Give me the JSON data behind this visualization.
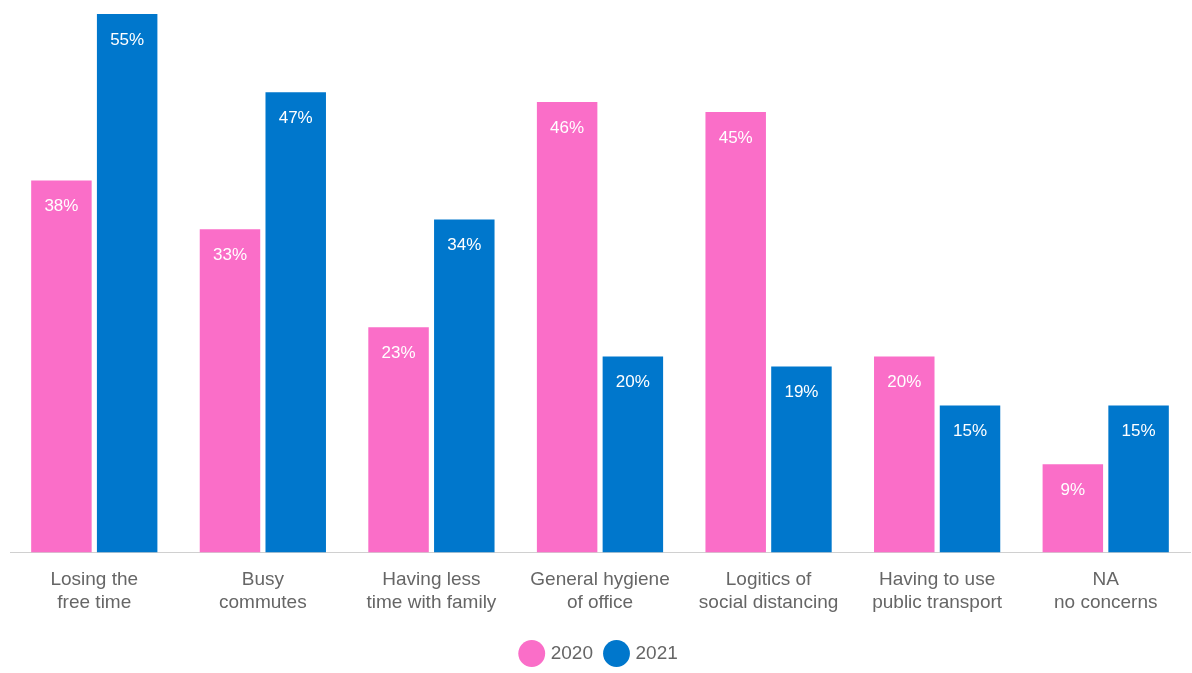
{
  "chart_data": {
    "type": "bar",
    "categories": [
      "Losing the\nfree time",
      "Busy\ncommutes",
      "Having less\ntime with family",
      "General hygiene\nof office",
      "Logitics of\nsocial distancing",
      "Having to use\npublic transport",
      "NA\nno concerns"
    ],
    "series": [
      {
        "name": "2020",
        "color": "#fa6ec8",
        "values": [
          38,
          33,
          23,
          46,
          45,
          20,
          9
        ],
        "value_labels": [
          "38%",
          "33%",
          "23%",
          "46%",
          "45%",
          "20%",
          "9%"
        ]
      },
      {
        "name": "2021",
        "color": "#0077cc",
        "values": [
          55,
          47,
          34,
          20,
          19,
          15,
          15
        ],
        "value_labels": [
          "55%",
          "47%",
          "34%",
          "20%",
          "19%",
          "15%",
          "15%"
        ]
      }
    ],
    "grid": false,
    "legend": "bottom"
  }
}
